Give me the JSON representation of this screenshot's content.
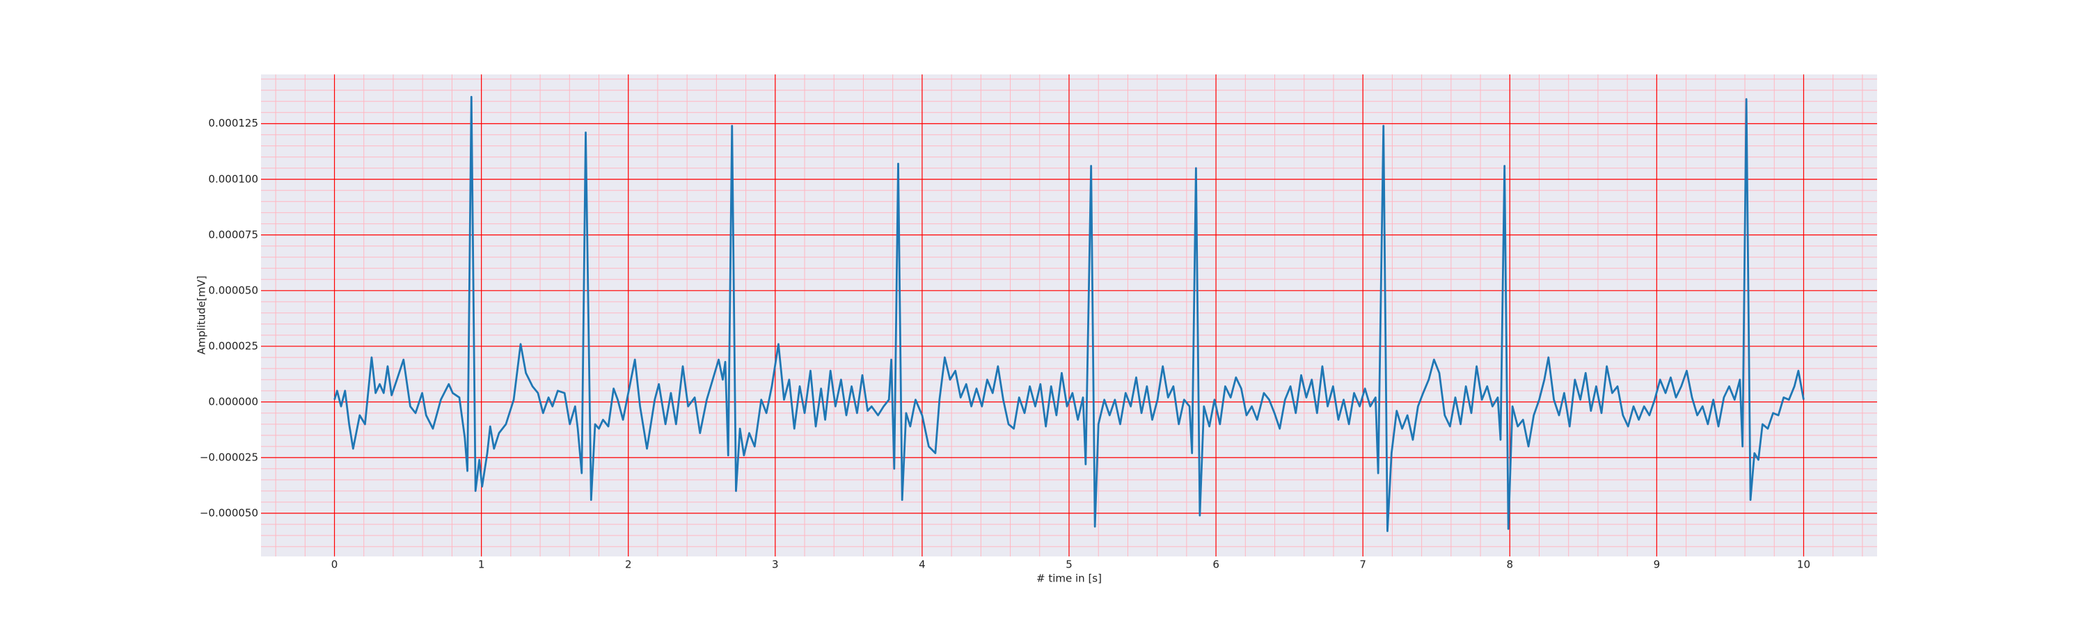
{
  "chart_data": {
    "type": "line",
    "xlabel": "# time in [s]",
    "ylabel": "Amplitude[mV]",
    "x": [
      0,
      0.018,
      0.045,
      0.072,
      0.1,
      0.127,
      0.172,
      0.208,
      0.253,
      0.28,
      0.308,
      0.335,
      0.362,
      0.389,
      0.425,
      0.47,
      0.516,
      0.552,
      0.597,
      0.624,
      0.67,
      0.724,
      0.778,
      0.805,
      0.85,
      0.887,
      0.905,
      0.932,
      0.96,
      0.986,
      1.005,
      1.04,
      1.06,
      1.086,
      1.12,
      1.167,
      1.22,
      1.267,
      1.303,
      1.348,
      1.385,
      1.42,
      1.457,
      1.484,
      1.52,
      1.566,
      1.602,
      1.638,
      1.656,
      1.683,
      1.71,
      1.747,
      1.774,
      1.8,
      1.828,
      1.864,
      1.9,
      1.928,
      1.964,
      2.0,
      2.045,
      2.08,
      2.127,
      2.18,
      2.208,
      2.253,
      2.29,
      2.325,
      2.371,
      2.407,
      2.452,
      2.488,
      2.534,
      2.579,
      2.615,
      2.643,
      2.66,
      2.68,
      2.706,
      2.733,
      2.76,
      2.787,
      2.823,
      2.86,
      2.905,
      2.94,
      2.977,
      3.022,
      3.06,
      3.095,
      3.13,
      3.167,
      3.2,
      3.24,
      3.276,
      3.312,
      3.34,
      3.376,
      3.41,
      3.448,
      3.484,
      3.52,
      3.557,
      3.593,
      3.629,
      3.656,
      3.7,
      3.738,
      3.774,
      3.79,
      3.81,
      3.837,
      3.864,
      3.891,
      3.919,
      3.955,
      4.0,
      4.045,
      4.09,
      4.118,
      4.154,
      4.19,
      4.226,
      4.262,
      4.3,
      4.335,
      4.37,
      4.407,
      4.443,
      4.48,
      4.516,
      4.552,
      4.588,
      4.624,
      4.66,
      4.697,
      4.733,
      4.77,
      4.805,
      4.842,
      4.878,
      4.914,
      4.95,
      4.986,
      5.023,
      5.06,
      5.095,
      5.113,
      5.15,
      5.176,
      5.2,
      5.24,
      5.276,
      5.312,
      5.348,
      5.385,
      5.42,
      5.457,
      5.493,
      5.53,
      5.566,
      5.602,
      5.638,
      5.674,
      5.71,
      5.747,
      5.783,
      5.82,
      5.837,
      5.864,
      5.89,
      5.918,
      5.955,
      5.99,
      6.027,
      6.063,
      6.1,
      6.136,
      6.172,
      6.208,
      6.244,
      6.28,
      6.326,
      6.362,
      6.398,
      6.434,
      6.47,
      6.507,
      6.543,
      6.58,
      6.615,
      6.652,
      6.688,
      6.724,
      6.76,
      6.797,
      6.833,
      6.869,
      6.905,
      6.94,
      6.978,
      7.014,
      7.05,
      7.086,
      7.104,
      7.14,
      7.167,
      7.195,
      7.23,
      7.267,
      7.303,
      7.34,
      7.375,
      7.41,
      7.448,
      7.484,
      7.52,
      7.557,
      7.593,
      7.629,
      7.665,
      7.701,
      7.738,
      7.774,
      7.81,
      7.846,
      7.882,
      7.918,
      7.937,
      7.964,
      7.99,
      8.018,
      8.054,
      8.09,
      8.127,
      8.163,
      8.2,
      8.235,
      8.263,
      8.3,
      8.335,
      8.37,
      8.407,
      8.443,
      8.48,
      8.516,
      8.552,
      8.588,
      8.624,
      8.66,
      8.697,
      8.733,
      8.77,
      8.805,
      8.842,
      8.878,
      8.914,
      8.95,
      8.986,
      9.023,
      9.06,
      9.095,
      9.131,
      9.167,
      9.204,
      9.24,
      9.276,
      9.312,
      9.348,
      9.385,
      9.42,
      9.457,
      9.493,
      9.53,
      9.566,
      9.584,
      9.61,
      9.638,
      9.665,
      9.692,
      9.72,
      9.756,
      9.792,
      9.828,
      9.864,
      9.9,
      9.937,
      9.964,
      10.0
    ],
    "series": [
      {
        "color": "#1f77b4",
        "values": [
          1e-06,
          5e-06,
          -2e-06,
          5e-06,
          -1e-05,
          -2.1e-05,
          -6e-06,
          -1e-05,
          2e-05,
          4e-06,
          8e-06,
          4e-06,
          1.6e-05,
          3e-06,
          1e-05,
          1.9e-05,
          -2e-06,
          -5e-06,
          4e-06,
          -6e-06,
          -1.2e-05,
          1e-06,
          8e-06,
          4e-06,
          2e-06,
          -1.6e-05,
          -3.1e-05,
          0.000137,
          -4e-05,
          -2.6e-05,
          -3.8e-05,
          -2.3e-05,
          -1.1e-05,
          -2.1e-05,
          -1.4e-05,
          -1e-05,
          1e-06,
          2.6e-05,
          1.3e-05,
          7e-06,
          4e-06,
          -5e-06,
          2e-06,
          -2e-06,
          5e-06,
          4e-06,
          -1e-05,
          -2e-06,
          -1.2e-05,
          -3.2e-05,
          0.000121,
          -4.4e-05,
          -1e-05,
          -1.2e-05,
          -8e-06,
          -1.1e-05,
          6e-06,
          1e-06,
          -8e-06,
          4e-06,
          1.9e-05,
          -2e-06,
          -2.1e-05,
          1e-06,
          8e-06,
          -1e-05,
          4e-06,
          -1e-05,
          1.6e-05,
          -2e-06,
          2e-06,
          -1.4e-05,
          1e-06,
          1.1e-05,
          1.9e-05,
          1e-05,
          1.8e-05,
          -2.4e-05,
          0.000124,
          -4e-05,
          -1.2e-05,
          -2.4e-05,
          -1.4e-05,
          -2e-05,
          1e-06,
          -5e-06,
          7e-06,
          2.6e-05,
          1e-06,
          1e-05,
          -1.2e-05,
          7e-06,
          -5e-06,
          1.4e-05,
          -1.1e-05,
          6e-06,
          -8e-06,
          1.4e-05,
          -2e-06,
          1e-05,
          -6e-06,
          7e-06,
          -5e-06,
          1.2e-05,
          -4e-06,
          -2e-06,
          -6e-06,
          -2e-06,
          1e-06,
          1.9e-05,
          -3e-05,
          0.000107,
          -4.4e-05,
          -5e-06,
          -1.1e-05,
          1e-06,
          -6e-06,
          -2e-05,
          -2.3e-05,
          1e-06,
          2e-05,
          1e-05,
          1.4e-05,
          2e-06,
          8e-06,
          -2e-06,
          6e-06,
          -2e-06,
          1e-05,
          4e-06,
          1.6e-05,
          1e-06,
          -1e-05,
          -1.2e-05,
          2e-06,
          -5e-06,
          7e-06,
          -2e-06,
          8e-06,
          -1.1e-05,
          7e-06,
          -6e-06,
          1.3e-05,
          -2e-06,
          4e-06,
          -8e-06,
          2e-06,
          -2.8e-05,
          0.000106,
          -5.6e-05,
          -1e-05,
          1e-06,
          -6e-06,
          1e-06,
          -1e-05,
          4e-06,
          -2e-06,
          1.1e-05,
          -5e-06,
          7e-06,
          -8e-06,
          1e-06,
          1.6e-05,
          2e-06,
          7e-06,
          -1e-05,
          1e-06,
          -2e-06,
          -2.3e-05,
          0.000105,
          -5.1e-05,
          -2e-06,
          -1.1e-05,
          1e-06,
          -1e-05,
          7e-06,
          2e-06,
          1.1e-05,
          6e-06,
          -6e-06,
          -2e-06,
          -8e-06,
          4e-06,
          1e-06,
          -5e-06,
          -1.2e-05,
          1e-06,
          7e-06,
          -5e-06,
          1.2e-05,
          2e-06,
          1e-05,
          -5e-06,
          1.6e-05,
          -2e-06,
          7e-06,
          -8e-06,
          1e-06,
          -1e-05,
          4e-06,
          -2e-06,
          6e-06,
          -2e-06,
          2e-06,
          -3.2e-05,
          0.000124,
          -5.8e-05,
          -2.3e-05,
          -4e-06,
          -1.2e-05,
          -6e-06,
          -1.7e-05,
          -2e-06,
          4e-06,
          1e-05,
          1.9e-05,
          1.3e-05,
          -6e-06,
          -1.1e-05,
          2e-06,
          -1e-05,
          7e-06,
          -5e-06,
          1.6e-05,
          1e-06,
          7e-06,
          -2e-06,
          2e-06,
          -1.7e-05,
          0.000106,
          -5.7e-05,
          -2e-06,
          -1.1e-05,
          -8e-06,
          -2e-05,
          -6e-06,
          1e-06,
          1e-05,
          2e-05,
          1e-06,
          -6e-06,
          4e-06,
          -1.1e-05,
          1e-05,
          1e-06,
          1.3e-05,
          -4e-06,
          7e-06,
          -5e-06,
          1.6e-05,
          4e-06,
          7e-06,
          -6e-06,
          -1.1e-05,
          -2e-06,
          -8e-06,
          -2e-06,
          -6e-06,
          1e-06,
          1e-05,
          4e-06,
          1.1e-05,
          2e-06,
          7e-06,
          1.4e-05,
          2e-06,
          -6e-06,
          -2e-06,
          -1e-05,
          1e-06,
          -1.1e-05,
          2e-06,
          7e-06,
          1e-06,
          1e-05,
          -2e-05,
          0.000136,
          -4.4e-05,
          -2.3e-05,
          -2.6e-05,
          -1e-05,
          -1.2e-05,
          -5e-06,
          -6e-06,
          2e-06,
          1e-06,
          7e-06,
          1.4e-05,
          1e-06
        ]
      }
    ],
    "xlim": [
      -0.5,
      10.5
    ],
    "xticks": [
      0,
      1,
      2,
      3,
      4,
      5,
      6,
      7,
      8,
      9,
      10
    ],
    "ylim": [
      -6.94e-05,
      0.0001471
    ],
    "yticks": [
      {
        "value": -5e-05,
        "label": "−0.000050"
      },
      {
        "value": -2.5e-05,
        "label": "−0.000025"
      },
      {
        "value": 0,
        "label": "0.000000"
      },
      {
        "value": 2.5e-05,
        "label": "0.000025"
      },
      {
        "value": 5e-05,
        "label": "0.000050"
      },
      {
        "value": 7.5e-05,
        "label": "0.000075"
      },
      {
        "value": 0.0001,
        "label": "0.000100"
      },
      {
        "value": 0.000125,
        "label": "0.000125"
      }
    ],
    "x_minor_ticks": [
      -0.4,
      -0.2,
      0,
      0.2,
      0.4,
      0.6,
      0.8,
      1,
      1.2,
      1.4,
      1.6,
      1.8,
      2,
      2.2,
      2.4,
      2.6,
      2.8,
      3,
      3.2,
      3.4,
      3.6,
      3.8,
      4,
      4.2,
      4.4,
      4.6,
      4.8,
      5,
      5.2,
      5.4,
      5.6,
      5.8,
      6,
      6.2,
      6.4,
      6.6,
      6.8,
      7,
      7.2,
      7.4,
      7.6,
      7.8,
      8,
      8.2,
      8.4,
      8.6,
      8.8,
      9,
      9.2,
      9.4,
      9.6,
      9.8,
      10,
      10.2,
      10.4
    ],
    "y_minor_ticks": [
      -6.5e-05,
      -6e-05,
      -5.5e-05,
      -5e-05,
      -4.5e-05,
      -4e-05,
      -3.5e-05,
      -3e-05,
      -2.5e-05,
      -2e-05,
      -1.5e-05,
      -1e-05,
      -5e-06,
      0,
      5e-06,
      1e-05,
      1.5e-05,
      2e-05,
      2.5e-05,
      3e-05,
      3.5e-05,
      4e-05,
      4.5e-05,
      5e-05,
      5.5e-05,
      6e-05,
      6.5e-05,
      7e-05,
      7.5e-05,
      8e-05,
      8.5e-05,
      9e-05,
      9.5e-05,
      0.0001,
      0.000105,
      0.00011,
      0.000115,
      0.00012,
      0.000125,
      0.00013,
      0.000135,
      0.00014,
      0.000145
    ],
    "grid": true,
    "grid_color": "#ff0000",
    "minor_grid": true,
    "minor_grid_color": "#ffb6c1",
    "background": "#eaeaf2"
  }
}
